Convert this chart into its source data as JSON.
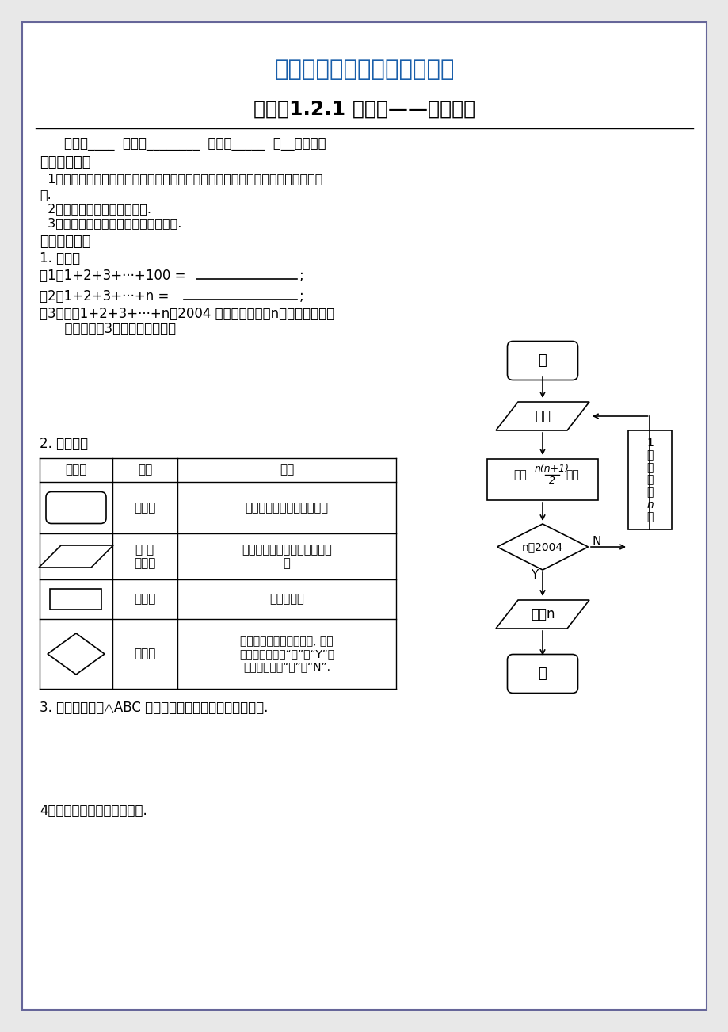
{
  "title1": "（人教版）精品数学教学资料",
  "title2": "课题：1.2.1 流程图——顺序结构",
  "section1": "【学习目标】",
  "obj1": "  1、了解常用流程图符号（输入输出框、处理框、判断框、起止框、流程线）的意",
  "義": "义.",
  "obj2": "  2、能用流程图表示顺序结构.",
  "obj3": "  3、能识别简单的流程图所描述的算法.",
  "section2": "【课前预习】",
  "pre1": "1. 问题：",
  "pre1a_left": "（1）1+2+3+···+100 =",
  "pre1b_left": "（2）1+2+3+···+n =",
  "pre1c": "（3）求卓1+2+3+···+n＞2004 时，满足条件的n的最小正整数；",
  "pre1d": "      请设计第（3）个问题的算法：",
  "pre2": "2. 流程图：",
  "tbl_h0": "程序框",
  "tbl_h1": "名称",
  "tbl_h2": "功能",
  "tbl_r1_n": "起止框",
  "tbl_r1_f": "表示一个算法的起始和结束",
  "tbl_r2_n": "输 入\n输出框",
  "tbl_r2_f": "表示一个算法输入和输出的信\n息",
  "tbl_r3_n": "处理框",
  "tbl_r3_f": "赋値、计算",
  "tbl_r4_n": "判断框",
  "tbl_r4_f": "判断某一个条件是否成立, 成立\n的在出口处标明“是”或“Y”；\n不成立时标明“否”或“N”.",
  "section3": "3. 问题：写出作△ABC 的外接圆的算法，并用流程图表示.",
  "section4": "4．顺序结构的含义及其表示.",
  "fc_kai": "开",
  "fc_shuru": "输入",
  "fc_jiasuan": "计算",
  "fc_dezhi": "的値",
  "fc_cond": "n＞2004",
  "fc_Y": "Y",
  "fc_N": "N",
  "fc_shuchu": "输出n",
  "fc_jie": "结",
  "sidebar": "使n的値增加1",
  "bg_color": "#e8e8e8",
  "paper_color": "#ffffff",
  "title1_color": "#1a5faa",
  "black": "#000000"
}
